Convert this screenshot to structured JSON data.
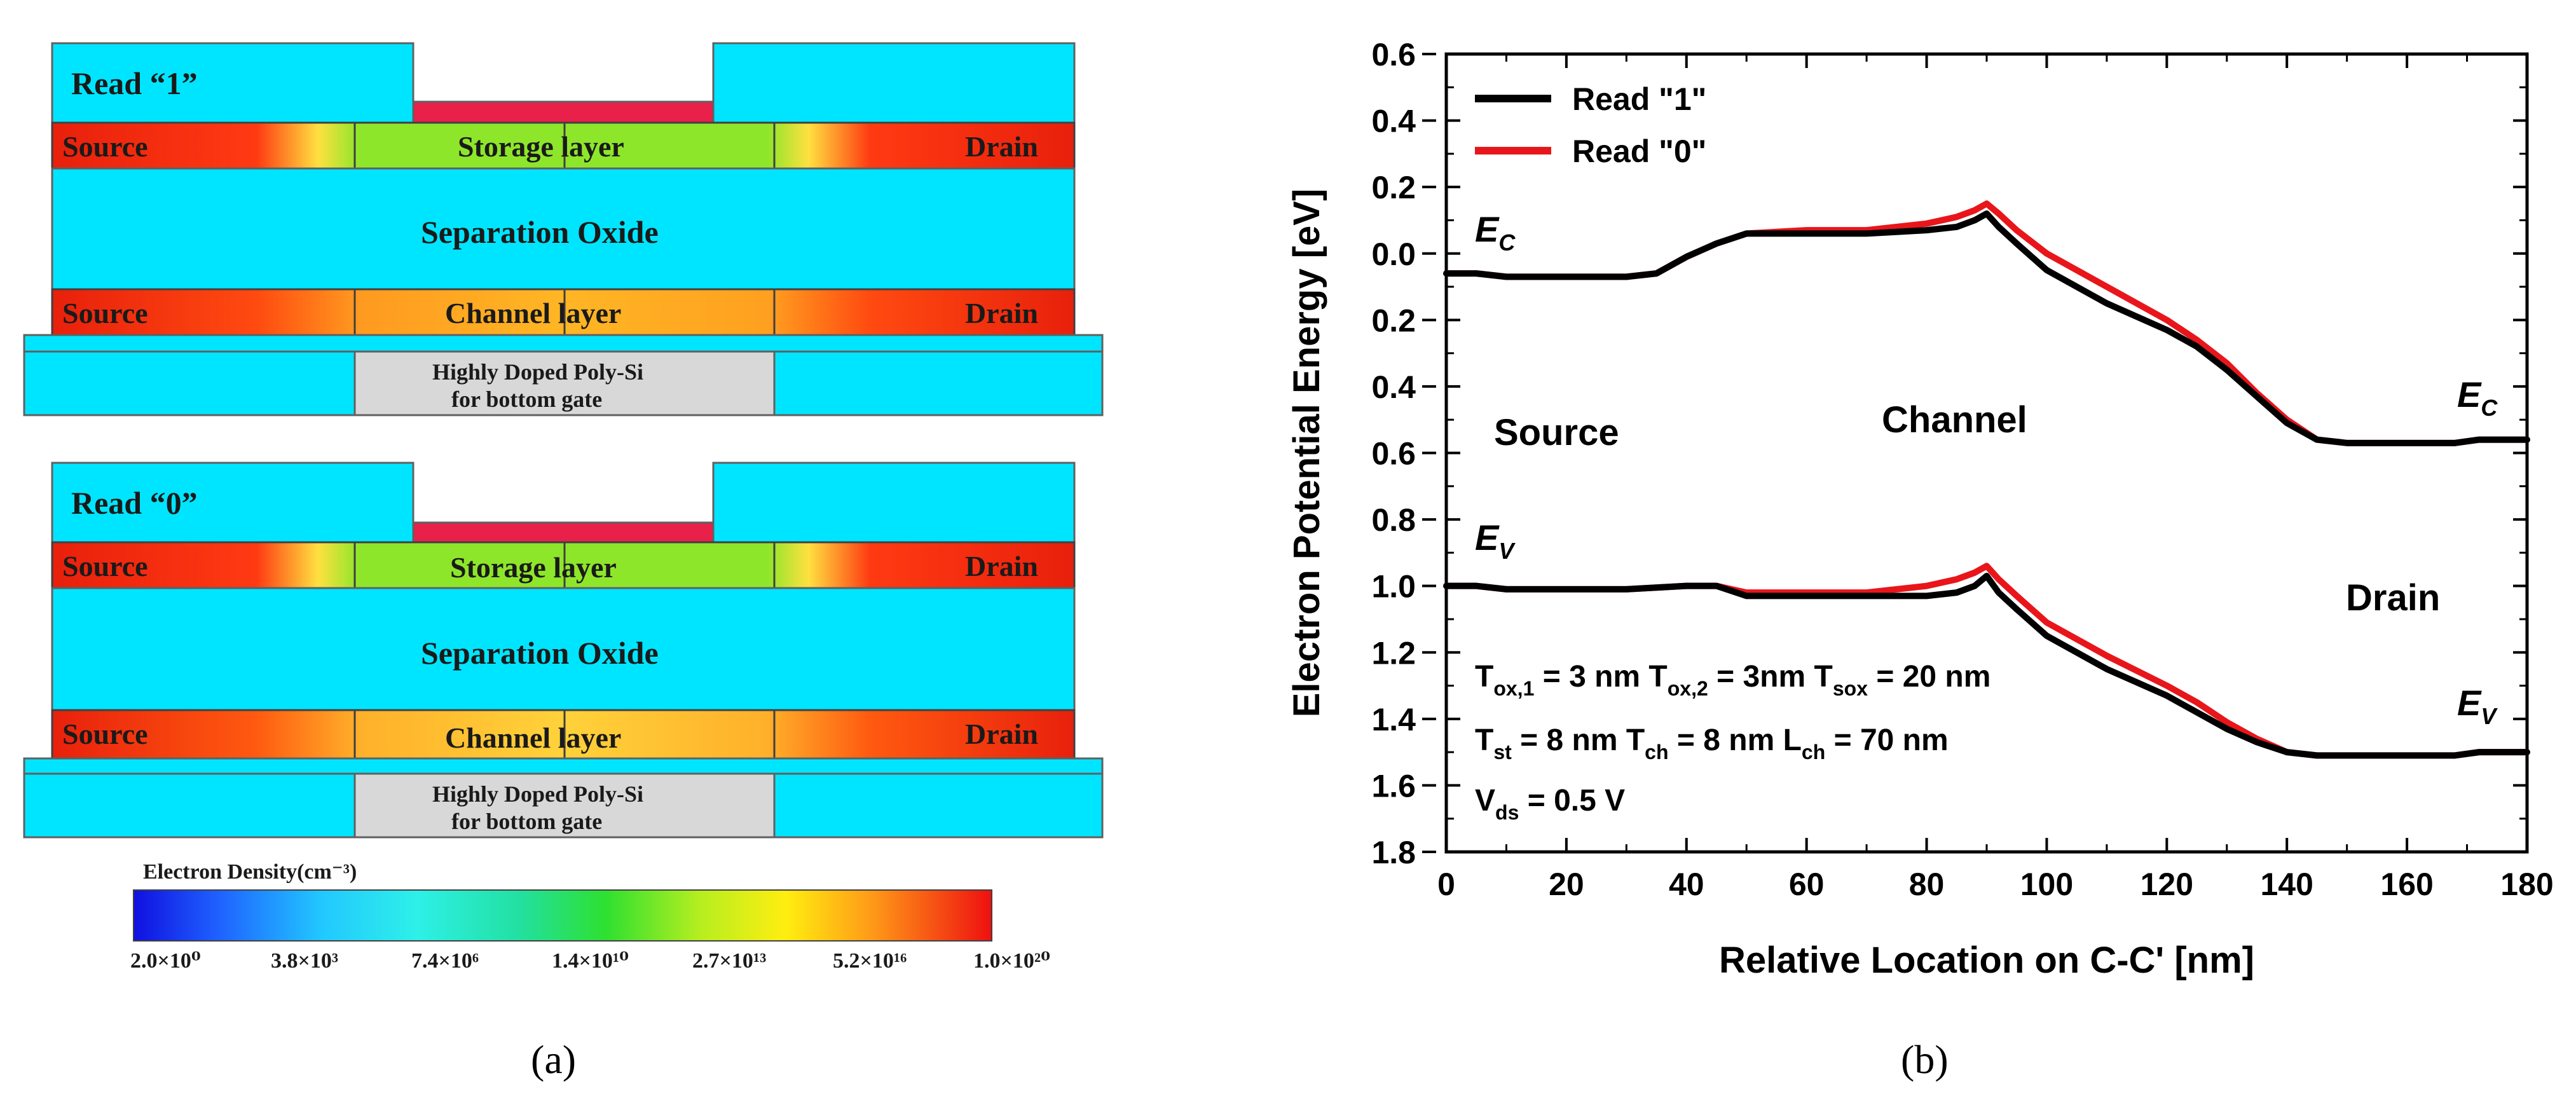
{
  "panel_a": {
    "caption": "(a)",
    "devices": [
      {
        "read_label": "Read “1”",
        "source": "Source",
        "drain": "Drain",
        "storage": "Storage layer",
        "oxide": "Separation Oxide",
        "channel": "Channel layer",
        "poly_line1": "Highly Doped Poly-Si",
        "poly_line2": "for bottom gate"
      },
      {
        "read_label": "Read “0”",
        "source": "Source",
        "drain": "Drain",
        "storage": "Storage layer",
        "oxide": "Separation Oxide",
        "channel": "Channel layer",
        "poly_line1": "Highly Doped Poly-Si",
        "poly_line2": "for bottom gate"
      }
    ],
    "colorbar": {
      "title": "Electron Density(cm⁻³)",
      "ticks": [
        "2.0×10⁰",
        "3.8×10³",
        "7.4×10⁶",
        "1.4×10¹⁰",
        "2.7×10¹³",
        "5.2×10¹⁶",
        "1.0×10²⁰"
      ]
    }
  },
  "panel_b": {
    "caption": "(b)"
  },
  "chart_data": {
    "type": "line",
    "title": "",
    "xlabel": "Relative Location on C-C' [nm]",
    "ylabel": "Electron Potential Energy [eV]",
    "xlim": [
      0,
      180
    ],
    "ylim": [
      -1.8,
      0.6
    ],
    "y_inverted": true,
    "xticks": [
      0,
      20,
      40,
      60,
      80,
      100,
      120,
      140,
      160,
      180
    ],
    "yticks": [
      0.6,
      0.4,
      0.2,
      0.0,
      -0.2,
      -0.4,
      -0.6,
      -0.8,
      -1.0,
      -1.2,
      -1.4,
      -1.6,
      -1.8
    ],
    "ytick_labels": [
      "0.6",
      "0.4",
      "0.2",
      "0.0",
      "0.2",
      "0.4",
      "0.6",
      "0.8",
      "1.0",
      "1.2",
      "1.4",
      "1.6",
      "1.8"
    ],
    "legend_position": "top-left",
    "series": [
      {
        "name": "Read \"1\"",
        "color": "#000000",
        "band": "Ec",
        "x": [
          0,
          5,
          10,
          20,
          30,
          35,
          40,
          45,
          50,
          60,
          70,
          80,
          85,
          88,
          90,
          92,
          95,
          100,
          110,
          120,
          125,
          130,
          135,
          140,
          145,
          150,
          160,
          168,
          172,
          180
        ],
        "y": [
          -0.06,
          -0.06,
          -0.07,
          -0.07,
          -0.07,
          -0.06,
          -0.01,
          0.03,
          0.06,
          0.06,
          0.06,
          0.07,
          0.08,
          0.1,
          0.12,
          0.08,
          0.03,
          -0.05,
          -0.15,
          -0.23,
          -0.28,
          -0.35,
          -0.43,
          -0.51,
          -0.56,
          -0.57,
          -0.57,
          -0.57,
          -0.56,
          -0.56
        ]
      },
      {
        "name": "Read \"0\"",
        "color": "#e8161b",
        "band": "Ec",
        "x": [
          0,
          5,
          10,
          20,
          30,
          35,
          40,
          45,
          50,
          60,
          70,
          80,
          85,
          88,
          90,
          92,
          95,
          100,
          110,
          120,
          125,
          130,
          135,
          140,
          145,
          150,
          160,
          168,
          172,
          180
        ],
        "y": [
          -0.06,
          -0.06,
          -0.07,
          -0.07,
          -0.07,
          -0.06,
          -0.01,
          0.03,
          0.06,
          0.07,
          0.07,
          0.09,
          0.11,
          0.13,
          0.15,
          0.12,
          0.07,
          0.0,
          -0.1,
          -0.2,
          -0.26,
          -0.33,
          -0.42,
          -0.5,
          -0.56,
          -0.57,
          -0.57,
          -0.57,
          -0.56,
          -0.56
        ]
      },
      {
        "name": "Read \"1\"",
        "color": "#000000",
        "band": "Ev",
        "x": [
          0,
          5,
          10,
          20,
          30,
          40,
          45,
          50,
          60,
          70,
          80,
          85,
          88,
          90,
          92,
          95,
          100,
          110,
          120,
          125,
          130,
          135,
          140,
          145,
          150,
          160,
          168,
          172,
          180
        ],
        "y": [
          -1.0,
          -1.0,
          -1.01,
          -1.01,
          -1.01,
          -1.0,
          -1.0,
          -1.03,
          -1.03,
          -1.03,
          -1.03,
          -1.02,
          -1.0,
          -0.97,
          -1.02,
          -1.07,
          -1.15,
          -1.25,
          -1.33,
          -1.38,
          -1.43,
          -1.47,
          -1.5,
          -1.51,
          -1.51,
          -1.51,
          -1.51,
          -1.5,
          -1.5
        ]
      },
      {
        "name": "Read \"0\"",
        "color": "#e8161b",
        "band": "Ev",
        "x": [
          0,
          5,
          10,
          20,
          30,
          40,
          45,
          50,
          60,
          70,
          80,
          85,
          88,
          90,
          92,
          95,
          100,
          110,
          120,
          125,
          130,
          135,
          140,
          145,
          150,
          160,
          168,
          172,
          180
        ],
        "y": [
          -1.0,
          -1.0,
          -1.01,
          -1.01,
          -1.01,
          -1.0,
          -1.0,
          -1.02,
          -1.02,
          -1.02,
          -1.0,
          -0.98,
          -0.96,
          -0.94,
          -0.98,
          -1.03,
          -1.11,
          -1.21,
          -1.3,
          -1.35,
          -1.41,
          -1.46,
          -1.5,
          -1.51,
          -1.51,
          -1.51,
          -1.51,
          -1.5,
          -1.5
        ]
      }
    ],
    "annotations": {
      "ec_left": {
        "main": "E",
        "sub": "C"
      },
      "ec_right": {
        "main": "E",
        "sub": "C"
      },
      "ev_left": {
        "main": "E",
        "sub": "V"
      },
      "ev_right": {
        "main": "E",
        "sub": "V"
      },
      "source": "Source",
      "channel": "Channel",
      "drain": "Drain",
      "params_line1": [
        {
          "t": "T"
        },
        {
          "t": "ox,1",
          "sub": true
        },
        {
          "t": " = 3 nm T"
        },
        {
          "t": "ox,2",
          "sub": true
        },
        {
          "t": " = 3nm T"
        },
        {
          "t": "sox",
          "sub": true
        },
        {
          "t": " = 20 nm"
        }
      ],
      "params_line2": [
        {
          "t": "T"
        },
        {
          "t": "st",
          "sub": true
        },
        {
          "t": " = 8 nm T"
        },
        {
          "t": "ch",
          "sub": true
        },
        {
          "t": "  = 8 nm L"
        },
        {
          "t": "ch",
          "sub": true
        },
        {
          "t": " = 70 nm"
        }
      ],
      "params_line3": [
        {
          "t": "V"
        },
        {
          "t": "ds",
          "sub": true
        },
        {
          "t": " = 0.5 V"
        }
      ]
    }
  }
}
